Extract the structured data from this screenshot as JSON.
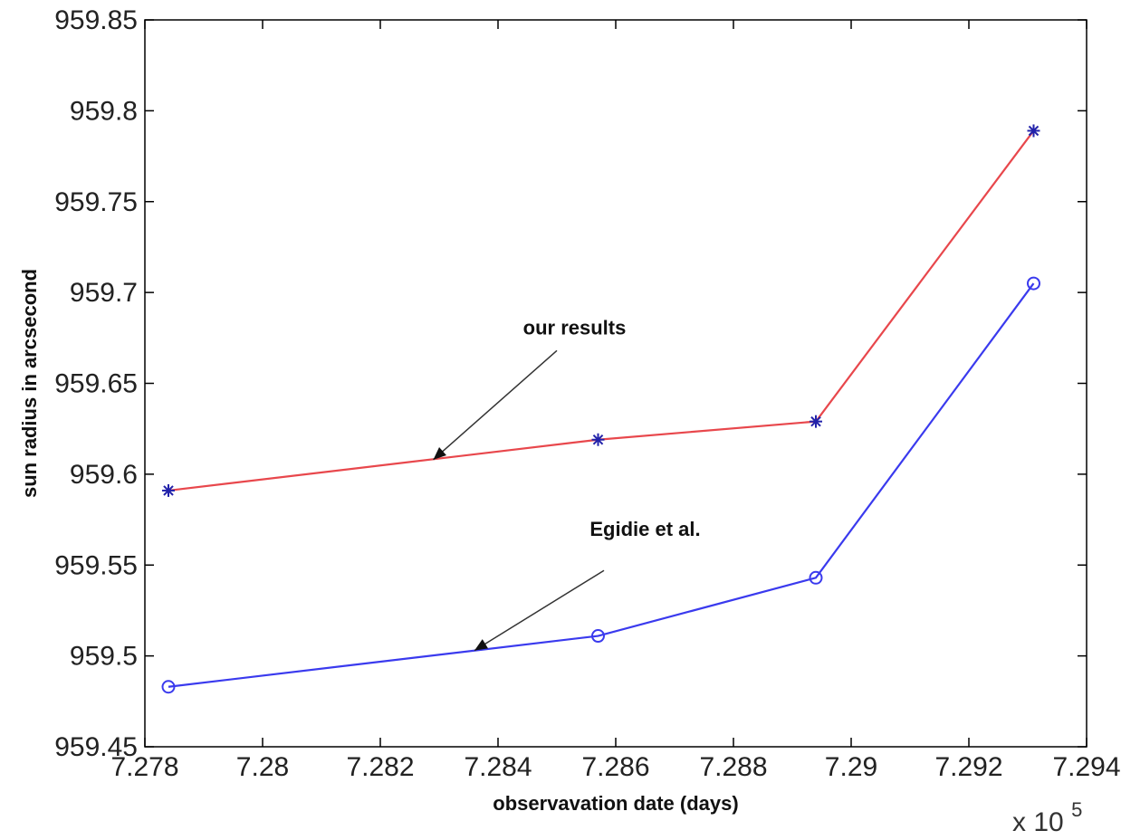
{
  "chart_data": {
    "type": "line",
    "title": "",
    "xlabel": "observavation date (days)",
    "ylabel": "sun radius in arcsecond",
    "x_exponent_label": "x 10",
    "x_exponent_power": "5",
    "xlim": [
      7.278,
      7.294
    ],
    "ylim": [
      959.45,
      959.85
    ],
    "xticks": [
      7.278,
      7.28,
      7.282,
      7.284,
      7.286,
      7.288,
      7.29,
      7.292,
      7.294
    ],
    "xtick_labels": [
      "7.278",
      "7.28",
      "7.282",
      "7.284",
      "7.286",
      "7.288",
      "7.29",
      "7.292",
      "7.294"
    ],
    "yticks": [
      959.45,
      959.5,
      959.55,
      959.6,
      959.65,
      959.7,
      959.75,
      959.8,
      959.85
    ],
    "ytick_labels": [
      "959.45",
      "959.5",
      "959.55",
      "959.6",
      "959.65",
      "959.7",
      "959.75",
      "959.8",
      "959.85"
    ],
    "grid": false,
    "legend": "none",
    "series": [
      {
        "color": "#e8474c",
        "marker": "star",
        "x": [
          7.2784,
          7.2857,
          7.2894,
          7.2931
        ],
        "y": [
          959.591,
          959.619,
          959.629,
          959.789
        ]
      },
      {
        "color": "#3a3aee",
        "marker": "circle",
        "x": [
          7.2784,
          7.2857,
          7.2894,
          7.2931
        ],
        "y": [
          959.483,
          959.511,
          959.543,
          959.705
        ]
      }
    ],
    "annotations": [
      {
        "text": "our results",
        "text_x": 7.2853,
        "text_y": 959.677,
        "arrow_from_x": 7.285,
        "arrow_from_y": 959.668,
        "arrow_to_x": 7.2829,
        "arrow_to_y": 959.608
      },
      {
        "text": "Egidie et al.",
        "text_x": 7.2865,
        "text_y": 959.566,
        "arrow_from_x": 7.2858,
        "arrow_from_y": 959.547,
        "arrow_to_x": 7.2836,
        "arrow_to_y": 959.503
      }
    ]
  }
}
